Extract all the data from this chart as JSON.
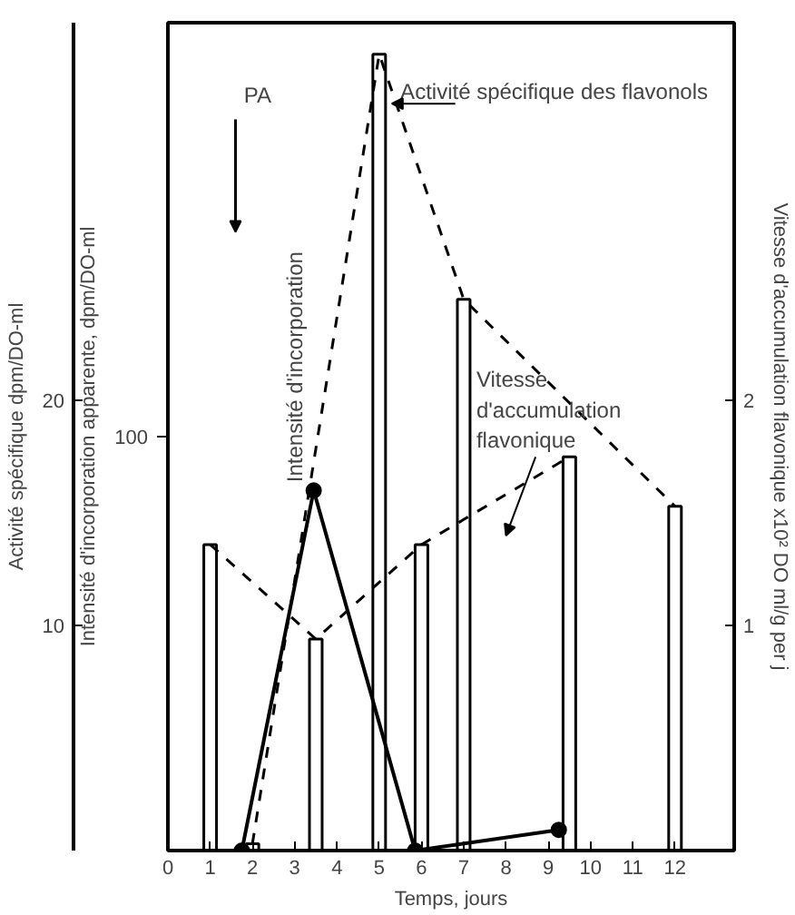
{
  "chart_data": {
    "type": "bar",
    "xlabel": "Temps, jours",
    "ylabel": "Intensité d'incorporation apparente, dpm/DO-ml",
    "y2label": "Activité spécifique dpm/DO-ml",
    "y3label": "Vitesse d'accumulation flavonique x10² DO ml/g per j",
    "xlim": [
      0,
      13.4
    ],
    "xticks": [
      0,
      1,
      2,
      3,
      4,
      5,
      6,
      7,
      8,
      9,
      10,
      11,
      12
    ],
    "ylim": [
      0,
      200
    ],
    "yticks": [
      100
    ],
    "y2lim": [
      0,
      36.8
    ],
    "y2ticks": [
      10,
      20
    ],
    "y3lim": [
      0,
      3.68
    ],
    "y3ticks": [
      1,
      2
    ],
    "series": [
      {
        "name": "Activité spécifique des flavonols",
        "axis": "y2",
        "color": "#000000",
        "x": [
          2,
          5,
          7,
          12
        ],
        "values": [
          0.3,
          35.4,
          24.5,
          15.3
        ]
      },
      {
        "type": "line",
        "axis": "y2",
        "color": "#000000",
        "line_style": "dashed",
        "marker": "none",
        "x": [
          2,
          5,
          7,
          12
        ],
        "values": [
          0.3,
          35.4,
          24.5,
          15.3
        ]
      },
      {
        "name": "Vitesse d'accumulation flavonique",
        "axis": "y3",
        "color": "#000000",
        "x": [
          1,
          3.5,
          6,
          9.5
        ],
        "values": [
          1.36,
          0.94,
          1.36,
          1.75
        ]
      },
      {
        "type": "line",
        "axis": "y3",
        "color": "#000000",
        "line_style": "dashed",
        "marker": "none",
        "x": [
          1,
          3.5,
          6,
          9.5
        ],
        "values": [
          1.36,
          0.94,
          1.36,
          1.75
        ]
      },
      {
        "name": "Intensité d'incorporation",
        "type": "line",
        "axis": "y",
        "color": "#000000",
        "line_style": "solid",
        "marker": "circle",
        "x": [
          1.75,
          3.45,
          5.85,
          9.25
        ],
        "values": [
          0,
          87,
          0,
          5
        ]
      }
    ],
    "annotations": [
      "PA"
    ],
    "grid": false
  }
}
